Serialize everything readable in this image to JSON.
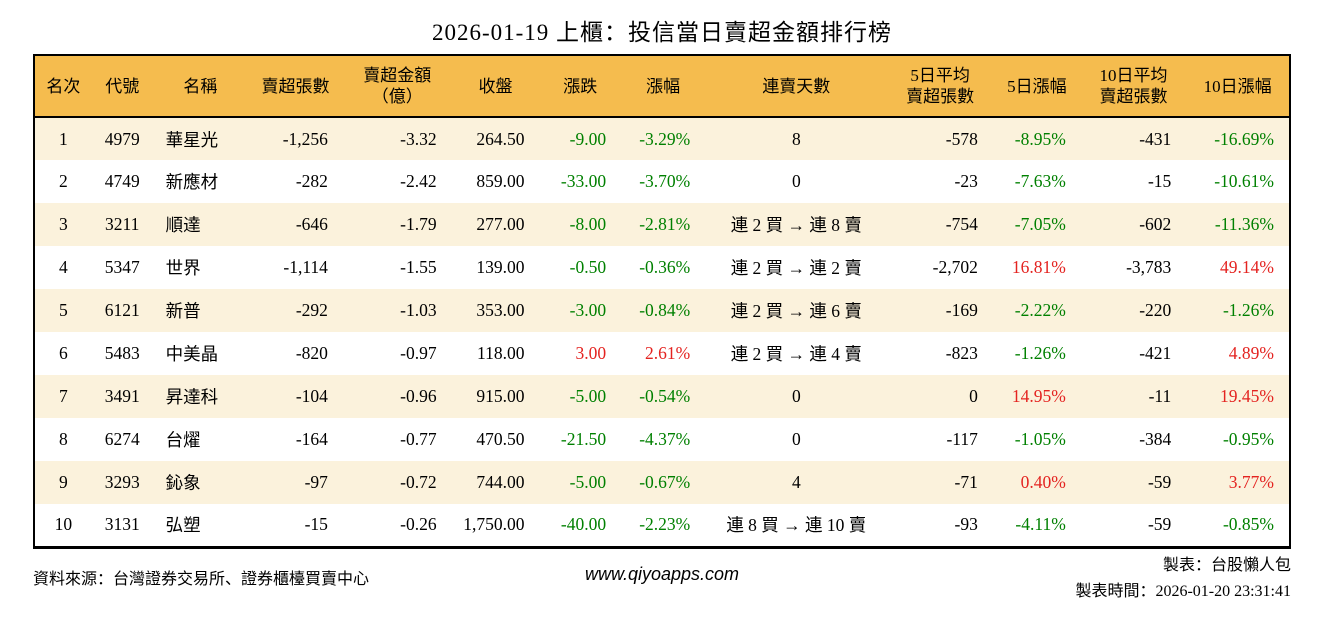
{
  "title": "2026-01-19 上櫃：投信當日賣超金額排行榜",
  "colors": {
    "header_bg": "#f5bc4e",
    "stripe_bg": "#fbf2dc",
    "up_red": "#e42320",
    "down_green": "#008000",
    "border": "#000000"
  },
  "chart_data": {
    "type": "table",
    "title": "2026-01-19 上櫃：投信當日賣超金額排行榜",
    "columns": [
      "名次",
      "代號",
      "名稱",
      "賣超張數",
      "賣超金額\n（億）",
      "收盤",
      "漲跌",
      "漲幅",
      "連賣天數",
      "5日平均\n賣超張數",
      "5日漲幅",
      "10日平均\n賣超張數",
      "10日漲幅"
    ],
    "rows": [
      {
        "cells": [
          "1",
          "4979",
          "華星光",
          "-1,256",
          "-3.32",
          "264.50",
          "-9.00",
          "-3.29%",
          "8",
          "-578",
          "-8.95%",
          "-431",
          "-16.69%"
        ],
        "colors": [
          "",
          "",
          "",
          "",
          "",
          "",
          "green",
          "green",
          "",
          "",
          "green",
          "",
          "green"
        ]
      },
      {
        "cells": [
          "2",
          "4749",
          "新應材",
          "-282",
          "-2.42",
          "859.00",
          "-33.00",
          "-3.70%",
          "0",
          "-23",
          "-7.63%",
          "-15",
          "-10.61%"
        ],
        "colors": [
          "",
          "",
          "",
          "",
          "",
          "",
          "green",
          "green",
          "",
          "",
          "green",
          "",
          "green"
        ]
      },
      {
        "cells": [
          "3",
          "3211",
          "順達",
          "-646",
          "-1.79",
          "277.00",
          "-8.00",
          "-2.81%",
          "連 2 買 → 連 8 賣",
          "-754",
          "-7.05%",
          "-602",
          "-11.36%"
        ],
        "colors": [
          "",
          "",
          "",
          "",
          "",
          "",
          "green",
          "green",
          "",
          "",
          "green",
          "",
          "green"
        ]
      },
      {
        "cells": [
          "4",
          "5347",
          "世界",
          "-1,114",
          "-1.55",
          "139.00",
          "-0.50",
          "-0.36%",
          "連 2 買 → 連 2 賣",
          "-2,702",
          "16.81%",
          "-3,783",
          "49.14%"
        ],
        "colors": [
          "",
          "",
          "",
          "",
          "",
          "",
          "green",
          "green",
          "",
          "",
          "red",
          "",
          "red"
        ]
      },
      {
        "cells": [
          "5",
          "6121",
          "新普",
          "-292",
          "-1.03",
          "353.00",
          "-3.00",
          "-0.84%",
          "連 2 買 → 連 6 賣",
          "-169",
          "-2.22%",
          "-220",
          "-1.26%"
        ],
        "colors": [
          "",
          "",
          "",
          "",
          "",
          "",
          "green",
          "green",
          "",
          "",
          "green",
          "",
          "green"
        ]
      },
      {
        "cells": [
          "6",
          "5483",
          "中美晶",
          "-820",
          "-0.97",
          "118.00",
          "3.00",
          "2.61%",
          "連 2 買 → 連 4 賣",
          "-823",
          "-1.26%",
          "-421",
          "4.89%"
        ],
        "colors": [
          "",
          "",
          "",
          "",
          "",
          "",
          "red",
          "red",
          "",
          "",
          "green",
          "",
          "red"
        ]
      },
      {
        "cells": [
          "7",
          "3491",
          "昇達科",
          "-104",
          "-0.96",
          "915.00",
          "-5.00",
          "-0.54%",
          "0",
          "0",
          "14.95%",
          "-11",
          "19.45%"
        ],
        "colors": [
          "",
          "",
          "",
          "",
          "",
          "",
          "green",
          "green",
          "",
          "",
          "red",
          "",
          "red"
        ]
      },
      {
        "cells": [
          "8",
          "6274",
          "台燿",
          "-164",
          "-0.77",
          "470.50",
          "-21.50",
          "-4.37%",
          "0",
          "-117",
          "-1.05%",
          "-384",
          "-0.95%"
        ],
        "colors": [
          "",
          "",
          "",
          "",
          "",
          "",
          "green",
          "green",
          "",
          "",
          "green",
          "",
          "green"
        ]
      },
      {
        "cells": [
          "9",
          "3293",
          "鈊象",
          "-97",
          "-0.72",
          "744.00",
          "-5.00",
          "-0.67%",
          "4",
          "-71",
          "0.40%",
          "-59",
          "3.77%"
        ],
        "colors": [
          "",
          "",
          "",
          "",
          "",
          "",
          "green",
          "green",
          "",
          "",
          "red",
          "",
          "red"
        ]
      },
      {
        "cells": [
          "10",
          "3131",
          "弘塑",
          "-15",
          "-0.26",
          "1,750.00",
          "-40.00",
          "-2.23%",
          "連 8 買 → 連 10 賣",
          "-93",
          "-4.11%",
          "-59",
          "-0.85%"
        ],
        "colors": [
          "",
          "",
          "",
          "",
          "",
          "",
          "green",
          "green",
          "",
          "",
          "green",
          "",
          "green"
        ]
      }
    ]
  },
  "footer": {
    "source": "資料來源：台灣證券交易所、證券櫃檯買賣中心",
    "website": "www.qiyoapps.com",
    "maker": "製表：台股懶人包",
    "made_at": "製表時間：2026-01-20 23:31:41"
  }
}
